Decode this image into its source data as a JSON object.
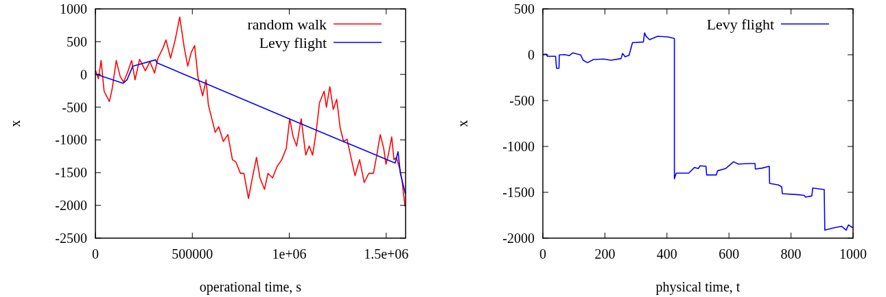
{
  "chart_data": [
    {
      "type": "line",
      "xlabel": "operational time, s",
      "ylabel": "x",
      "xlim": [
        0,
        1600000
      ],
      "xticks": [
        0,
        500000,
        {
          "value": 1000000,
          "label": "1e+06"
        },
        {
          "value": 1500000,
          "label": "1.5e+06"
        }
      ],
      "ylim": [
        -2500,
        1000
      ],
      "yticks": [
        -2500,
        -2000,
        -1500,
        -1000,
        -500,
        0,
        500,
        1000
      ],
      "legend": "top right",
      "grid": false,
      "series": [
        {
          "name": "random walk",
          "color": "#ff0000",
          "x": [
            1180,
            15400,
            29500,
            45000,
            72100,
            86300,
            107600,
            127700,
            145400,
            169000,
            186800,
            204500,
            228100,
            257700,
            281300,
            305000,
            322700,
            346300,
            364000,
            387700,
            411400,
            435000,
            458600,
            476400,
            494100,
            511800,
            529500,
            553200,
            571000,
            582700,
            600500,
            618200,
            635900,
            659600,
            683200,
            706800,
            724600,
            748200,
            766000,
            789600,
            807300,
            831000,
            848800,
            872300,
            890000,
            913700,
            937300,
            961000,
            984600,
            1002300,
            1020100,
            1037800,
            1061400,
            1085100,
            1102800,
            1120500,
            1138300,
            1156000,
            1179700,
            1191400,
            1209300,
            1227000,
            1244700,
            1262400,
            1280200,
            1297900,
            1315600,
            1339200,
            1362800,
            1386500,
            1410100,
            1433800,
            1451500,
            1469300,
            1487000,
            1498800,
            1510600,
            1528300,
            1540100,
            1552000,
            1569700,
            1581500,
            1596900
          ],
          "values": [
            56,
            -66,
            213,
            -257,
            -414,
            -223,
            213,
            -31,
            -118,
            56,
            213,
            -83,
            230,
            56,
            196,
            21,
            248,
            387,
            526,
            248,
            526,
            875,
            404,
            126,
            335,
            439,
            -48,
            -327,
            -83,
            -466,
            -675,
            -884,
            -797,
            -1024,
            -919,
            -1302,
            -1337,
            -1511,
            -1511,
            -1894,
            -1616,
            -1267,
            -1581,
            -1755,
            -1511,
            -1581,
            -1406,
            -1302,
            -1128,
            -675,
            -954,
            -1093,
            -675,
            -1232,
            -1093,
            -1232,
            -884,
            -431,
            -257,
            -501,
            -188,
            -536,
            -379,
            -815,
            -1024,
            -989,
            -1232,
            -1546,
            -1302,
            -1651,
            -1511,
            -1511,
            -1232,
            -919,
            -1128,
            -1372,
            -1232,
            -954,
            -1302,
            -1267,
            -1441,
            -1616,
            -2016
          ]
        },
        {
          "name": "Levy flight",
          "color": "#0000ff",
          "x": [
            1180,
            143000,
            163100,
            192700,
            310900,
            316800,
            996400,
            1546000,
            1561000,
            1573000,
            1599200
          ],
          "values": [
            4,
            -135,
            -83,
            126,
            223,
            178,
            -675,
            -1354,
            -1180,
            -1511,
            -1825
          ]
        }
      ]
    },
    {
      "type": "line",
      "xlabel": "physical time, t",
      "ylabel": "x",
      "xlim": [
        0,
        1000
      ],
      "xticks": [
        0,
        200,
        400,
        600,
        800,
        1000
      ],
      "ylim": [
        -2000,
        500
      ],
      "yticks": [
        -2000,
        -1500,
        -1000,
        -500,
        0,
        500
      ],
      "legend": "top right",
      "grid": false,
      "series": [
        {
          "name": "Levy flight",
          "color": "#0000ff",
          "x": [
            0,
            11,
            15,
            41,
            44,
            52,
            53,
            70,
            85,
            96,
            122,
            130,
            144,
            163,
            196,
            219,
            252,
            257,
            265,
            278,
            289,
            324,
            328,
            333,
            344,
            370,
            404,
            424,
            424,
            430,
            470,
            489,
            501,
            507,
            526,
            528,
            559,
            563,
            589,
            615,
            630,
            663,
            684,
            685,
            707,
            730,
            731,
            759,
            770,
            772,
            826,
            844,
            846,
            867,
            870,
            907,
            909,
            937,
            963,
            978,
            985,
            1000
          ],
          "values": [
            2,
            7,
            -17,
            -17,
            -147,
            -147,
            -2,
            2,
            -10,
            20,
            -2,
            -60,
            -87,
            -52,
            -47,
            -60,
            -42,
            15,
            -22,
            -5,
            132,
            139,
            239,
            201,
            164,
            201,
            194,
            177,
            -1353,
            -1291,
            -1291,
            -1229,
            -1241,
            -1211,
            -1216,
            -1311,
            -1311,
            -1266,
            -1241,
            -1167,
            -1192,
            -1187,
            -1187,
            -1246,
            -1236,
            -1216,
            -1403,
            -1420,
            -1440,
            -1515,
            -1527,
            -1535,
            -1552,
            -1540,
            -1453,
            -1470,
            -1913,
            -1888,
            -1871,
            -1913,
            -1856,
            -1888
          ]
        }
      ]
    }
  ]
}
